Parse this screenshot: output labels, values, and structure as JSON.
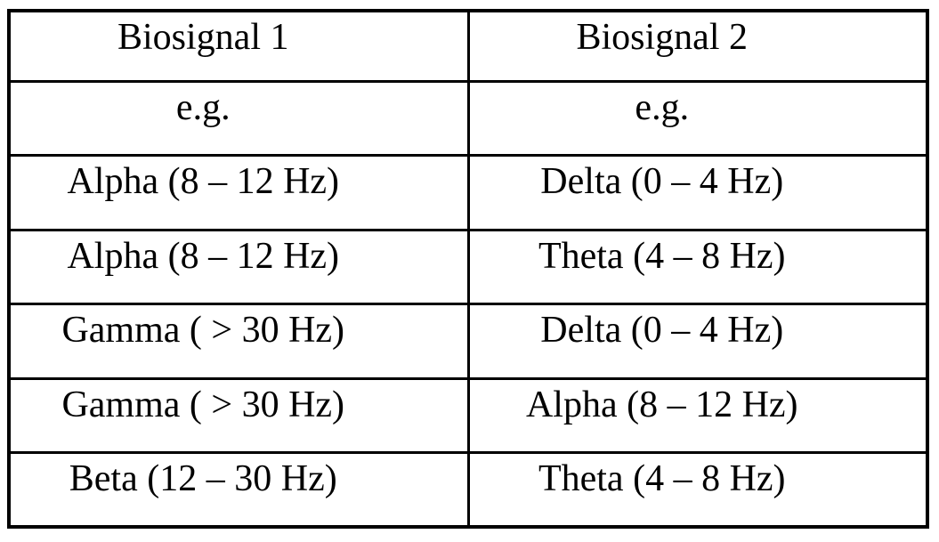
{
  "table": {
    "columns": [
      "Biosignal 1",
      "Biosignal 2"
    ],
    "rows": [
      [
        "e.g.",
        "e.g."
      ],
      [
        "Alpha (8 – 12 Hz)",
        "Delta (0 – 4 Hz)"
      ],
      [
        "Alpha (8 – 12 Hz)",
        "Theta (4 – 8 Hz)"
      ],
      [
        "Gamma ( > 30 Hz)",
        "Delta (0 – 4 Hz)"
      ],
      [
        "Gamma ( > 30 Hz)",
        "Alpha (8 – 12 Hz)"
      ],
      [
        "Beta (12 – 30 Hz)",
        "Theta (4 – 8 Hz)"
      ]
    ],
    "colors": {
      "border": "#000000",
      "background": "#ffffff",
      "text": "#000000"
    }
  },
  "chart_data": {
    "type": "table",
    "title": "",
    "columns": [
      "Biosignal 1",
      "Biosignal 2"
    ],
    "rows": [
      [
        "e.g.",
        "e.g."
      ],
      [
        "Alpha (8 – 12 Hz)",
        "Delta (0 – 4 Hz)"
      ],
      [
        "Alpha (8 – 12 Hz)",
        "Theta (4 – 8 Hz)"
      ],
      [
        "Gamma ( > 30 Hz)",
        "Delta (0 – 4 Hz)"
      ],
      [
        "Gamma ( > 30 Hz)",
        "Alpha (8 – 12 Hz)"
      ],
      [
        "Beta (12 – 30 Hz)",
        "Theta (4 – 8 Hz)"
      ]
    ]
  }
}
